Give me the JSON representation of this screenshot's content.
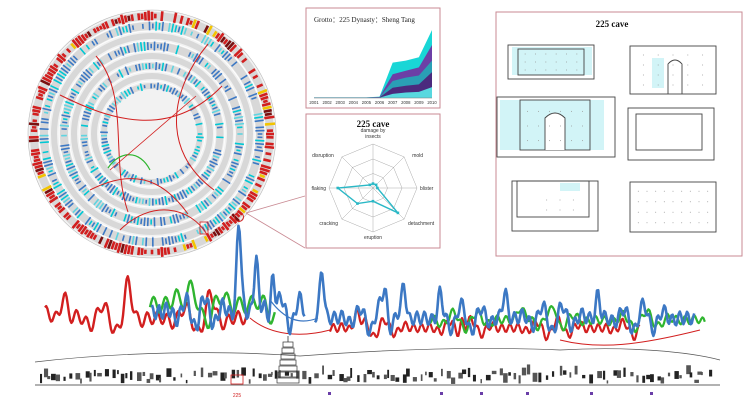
{
  "colors": {
    "red": "#d21f1f",
    "blue": "#3c78c4",
    "green": "#2fb52f",
    "cyan": "#00c8d4",
    "teal": "#2ab8c6",
    "purple": "#6a3ea8",
    "dark_purple": "#4b2a7e",
    "panel_border": "#c98a93",
    "ring_gray": "#cfcfcf"
  },
  "timeline_chart": {
    "title": "Grotto：225  Dynasty：Sheng Tang",
    "x_ticks": [
      "2001",
      "2002",
      "2003",
      "2004",
      "2005",
      "2006",
      "2007",
      "2008",
      "2009",
      "2010"
    ]
  },
  "radar_chart": {
    "title": "225   cave",
    "axes": [
      "damage by insects",
      "mold",
      "blister",
      "detachment",
      "eruption",
      "cracking",
      "flaking",
      "disruption"
    ],
    "values": [
      0.1,
      0.1,
      0.1,
      0.8,
      0.3,
      0.5,
      0.8,
      0.1
    ]
  },
  "cave_panel": {
    "title": "225   cave"
  },
  "facade": {
    "label": "225"
  }
}
